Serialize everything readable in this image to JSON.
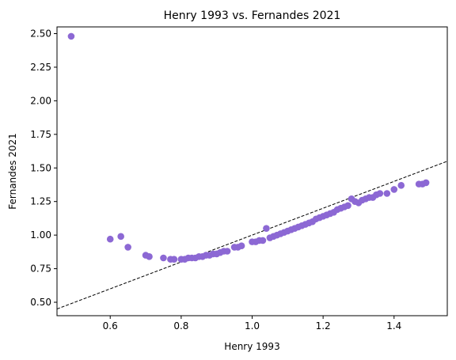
{
  "chart_data": {
    "type": "scatter",
    "title": "Henry 1993 vs. Fernandes 2021",
    "xlabel": "Henry 1993",
    "ylabel": "Fernandes 2021",
    "xlim": [
      0.45,
      1.55
    ],
    "ylim": [
      0.4,
      2.55
    ],
    "xticks": [
      {
        "value": 0.6,
        "label": "0.6"
      },
      {
        "value": 0.8,
        "label": "0.8"
      },
      {
        "value": 1.0,
        "label": "1.0"
      },
      {
        "value": 1.2,
        "label": "1.2"
      },
      {
        "value": 1.4,
        "label": "1.4"
      }
    ],
    "yticks": [
      {
        "value": 0.5,
        "label": "0.50"
      },
      {
        "value": 0.75,
        "label": "0.75"
      },
      {
        "value": 1.0,
        "label": "1.00"
      },
      {
        "value": 1.25,
        "label": "1.25"
      },
      {
        "value": 1.5,
        "label": "1.50"
      },
      {
        "value": 1.75,
        "label": "1.75"
      },
      {
        "value": 2.0,
        "label": "2.00"
      },
      {
        "value": 2.25,
        "label": "2.25"
      },
      {
        "value": 2.5,
        "label": "2.50"
      }
    ],
    "grid": false,
    "marker_color": "#8c68d4",
    "reference_line": {
      "slope": 1,
      "intercept": 0,
      "style": "dashed",
      "color": "#000000"
    },
    "points": [
      [
        0.49,
        2.48
      ],
      [
        0.6,
        0.97
      ],
      [
        0.63,
        0.99
      ],
      [
        0.65,
        0.91
      ],
      [
        0.7,
        0.85
      ],
      [
        0.71,
        0.84
      ],
      [
        0.75,
        0.83
      ],
      [
        0.77,
        0.82
      ],
      [
        0.78,
        0.82
      ],
      [
        0.8,
        0.82
      ],
      [
        0.81,
        0.82
      ],
      [
        0.82,
        0.83
      ],
      [
        0.83,
        0.83
      ],
      [
        0.84,
        0.83
      ],
      [
        0.85,
        0.84
      ],
      [
        0.86,
        0.84
      ],
      [
        0.87,
        0.85
      ],
      [
        0.88,
        0.85
      ],
      [
        0.89,
        0.86
      ],
      [
        0.9,
        0.86
      ],
      [
        0.91,
        0.87
      ],
      [
        0.92,
        0.88
      ],
      [
        0.93,
        0.88
      ],
      [
        0.95,
        0.91
      ],
      [
        0.96,
        0.91
      ],
      [
        0.97,
        0.92
      ],
      [
        1.0,
        0.95
      ],
      [
        1.01,
        0.95
      ],
      [
        1.02,
        0.96
      ],
      [
        1.03,
        0.96
      ],
      [
        1.04,
        1.05
      ],
      [
        1.05,
        0.98
      ],
      [
        1.06,
        0.99
      ],
      [
        1.07,
        1.0
      ],
      [
        1.08,
        1.01
      ],
      [
        1.09,
        1.02
      ],
      [
        1.1,
        1.03
      ],
      [
        1.11,
        1.04
      ],
      [
        1.12,
        1.05
      ],
      [
        1.13,
        1.06
      ],
      [
        1.14,
        1.07
      ],
      [
        1.15,
        1.08
      ],
      [
        1.16,
        1.09
      ],
      [
        1.17,
        1.1
      ],
      [
        1.18,
        1.12
      ],
      [
        1.19,
        1.13
      ],
      [
        1.2,
        1.14
      ],
      [
        1.21,
        1.15
      ],
      [
        1.22,
        1.16
      ],
      [
        1.23,
        1.17
      ],
      [
        1.24,
        1.19
      ],
      [
        1.25,
        1.2
      ],
      [
        1.26,
        1.21
      ],
      [
        1.27,
        1.22
      ],
      [
        1.28,
        1.27
      ],
      [
        1.29,
        1.25
      ],
      [
        1.3,
        1.24
      ],
      [
        1.31,
        1.26
      ],
      [
        1.32,
        1.27
      ],
      [
        1.33,
        1.28
      ],
      [
        1.34,
        1.28
      ],
      [
        1.35,
        1.3
      ],
      [
        1.36,
        1.31
      ],
      [
        1.38,
        1.31
      ],
      [
        1.4,
        1.34
      ],
      [
        1.42,
        1.37
      ],
      [
        1.47,
        1.38
      ],
      [
        1.48,
        1.38
      ],
      [
        1.49,
        1.39
      ]
    ]
  }
}
